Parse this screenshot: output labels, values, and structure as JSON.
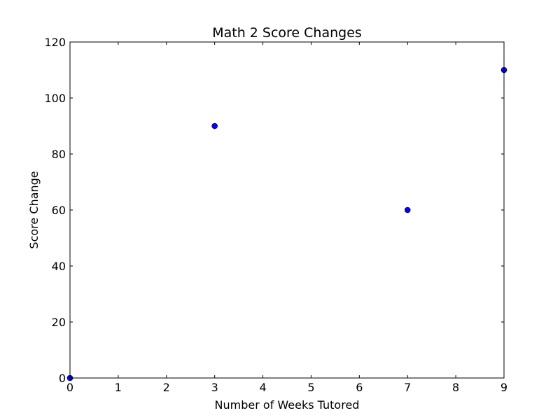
{
  "chart_data": {
    "type": "scatter",
    "title": "Math 2 Score Changes",
    "xlabel": "Number of Weeks Tutored",
    "ylabel": "Score Change",
    "xlim": [
      0,
      9
    ],
    "ylim": [
      0,
      120
    ],
    "x_ticks": [
      "0",
      "1",
      "2",
      "3",
      "4",
      "5",
      "6",
      "7",
      "8",
      "9"
    ],
    "y_ticks": [
      "0",
      "20",
      "40",
      "60",
      "80",
      "100",
      "120"
    ],
    "grid": false,
    "series": [
      {
        "x": [
          0,
          3,
          7,
          9
        ],
        "y": [
          0,
          90,
          60,
          110
        ],
        "color": "#0000ff",
        "edge_color": "#000000"
      }
    ]
  }
}
